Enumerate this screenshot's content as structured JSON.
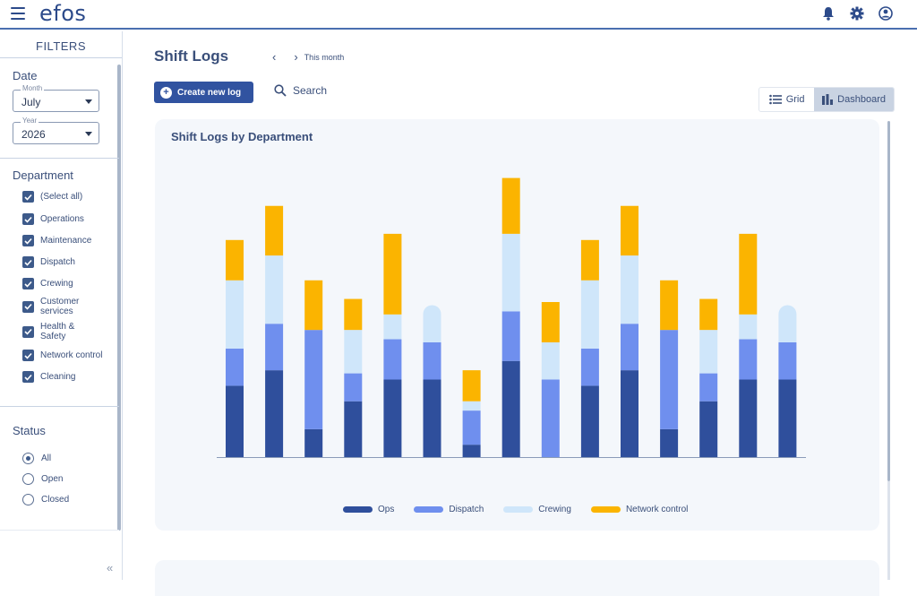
{
  "app": {
    "logo": "efos"
  },
  "topbar": {
    "icons": [
      "bell-icon",
      "gear-icon",
      "user-circle-icon"
    ]
  },
  "sidebar": {
    "title": "FILTERS",
    "date": {
      "label": "Date",
      "month": {
        "legend": "Month",
        "value": "July"
      },
      "year": {
        "legend": "Year",
        "value": "2026"
      }
    },
    "department": {
      "label": "Department",
      "items": [
        {
          "label": "(Select all)",
          "checked": true
        },
        {
          "label": "Operations",
          "checked": true
        },
        {
          "label": "Maintenance",
          "checked": true
        },
        {
          "label": "Dispatch",
          "checked": true
        },
        {
          "label": "Crewing",
          "checked": true
        },
        {
          "label": "Customer services",
          "checked": true
        },
        {
          "label": "Health & Safety",
          "checked": true
        },
        {
          "label": "Network control",
          "checked": true
        },
        {
          "label": "Cleaning",
          "checked": true
        }
      ]
    },
    "status": {
      "label": "Status",
      "options": [
        {
          "label": "All",
          "selected": true
        },
        {
          "label": "Open",
          "selected": false
        },
        {
          "label": "Closed",
          "selected": false
        }
      ]
    },
    "collapse_icon": "double-chevron-left-icon"
  },
  "main": {
    "title": "Shift Logs",
    "period": "This month",
    "create_button": "Create new log",
    "search_label": "Search",
    "view_toggle": {
      "grid": "Grid",
      "dashboard": "Dashboard",
      "active": "Dashboard"
    }
  },
  "chart_data": {
    "type": "bar",
    "stacked": true,
    "title": "Shift Logs by Department",
    "categories": [
      "",
      "",
      "",
      "",
      "",
      "",
      "",
      "",
      "",
      "",
      "",
      "",
      "",
      "",
      ""
    ],
    "series": [
      {
        "name": "Ops",
        "color": "#2f4f9c",
        "values": [
          23,
          28,
          9,
          18,
          25,
          25,
          4,
          31,
          0,
          23,
          28,
          9,
          18,
          25,
          25
        ]
      },
      {
        "name": "Dispatch",
        "color": "#6f8fee",
        "values": [
          12,
          15,
          32,
          9,
          13,
          12,
          11,
          16,
          25,
          12,
          15,
          32,
          9,
          13,
          12
        ]
      },
      {
        "name": "Crewing",
        "color": "#cfe6fa",
        "values": [
          22,
          22,
          0,
          14,
          8,
          12,
          3,
          25,
          12,
          22,
          22,
          0,
          14,
          8,
          12
        ]
      },
      {
        "name": "Network control",
        "color": "#fbb400",
        "values": [
          13,
          16,
          16,
          10,
          26,
          0,
          10,
          18,
          13,
          13,
          16,
          16,
          10,
          26,
          0
        ]
      }
    ],
    "grid": false,
    "legend_position": "bottom"
  }
}
